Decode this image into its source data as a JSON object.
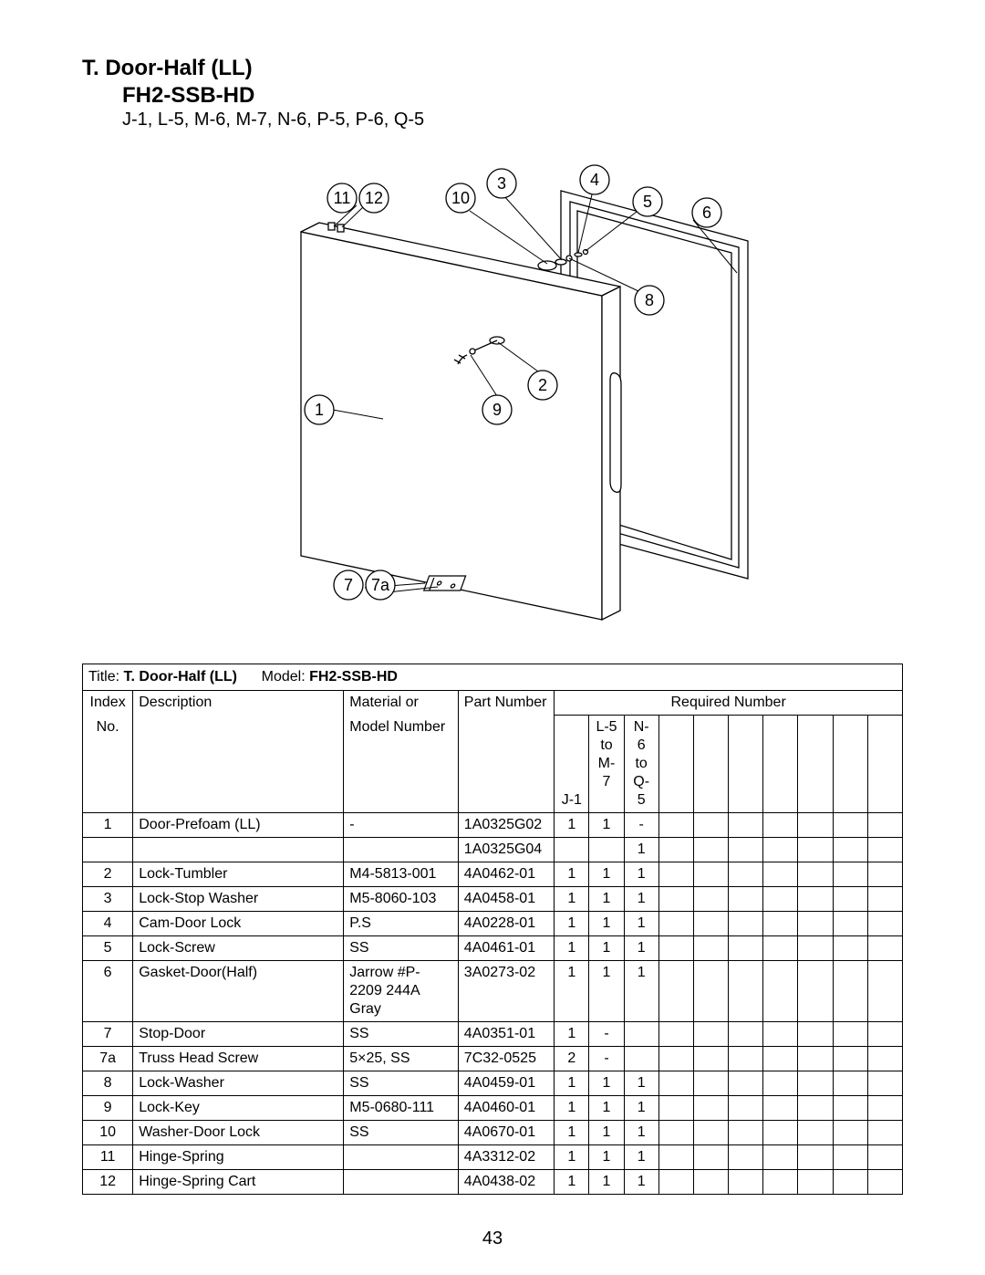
{
  "header": {
    "title_line1": "T. Door-Half (LL)",
    "title_line2": "FH2-SSB-HD",
    "subtitle": "J-1, L-5, M-6, M-7, N-6, P-5, P-6, Q-5"
  },
  "diagram": {
    "callouts": [
      "1",
      "2",
      "3",
      "4",
      "5",
      "6",
      "7",
      "7a",
      "8",
      "9",
      "10",
      "11",
      "12"
    ],
    "stroke": "#000000",
    "fill": "#ffffff",
    "callout_radius": 16
  },
  "table": {
    "title_prefix": "Title: ",
    "title_bold": "T. Door-Half (LL)",
    "model_prefix": "Model: ",
    "model_bold": "FH2-SSB-HD",
    "headers": {
      "index": "Index No.",
      "index_l1": "Index",
      "index_l2": "No.",
      "description": "Description",
      "material": "Material or Model Number",
      "material_l1": "Material or",
      "material_l2": "Model Number",
      "part": "Part Number",
      "required": "Required Number",
      "col_j1": "J-1",
      "col_l5_l1": "L-5",
      "col_l5_l2": "to",
      "col_l5_l3": "M-7",
      "col_n6_l1": "N-6",
      "col_n6_l2": "to",
      "col_n6_l3": "Q-5"
    },
    "rows": [
      {
        "idx": "1",
        "desc": "Door-Prefoam (LL)",
        "mat": "-",
        "part": "1A0325G02",
        "q": [
          "1",
          "1",
          "-"
        ]
      },
      {
        "idx": "",
        "desc": "",
        "mat": "",
        "part": "1A0325G04",
        "q": [
          "",
          "",
          "1"
        ]
      },
      {
        "idx": "2",
        "desc": "Lock-Tumbler",
        "mat": "M4-5813-001",
        "part": "4A0462-01",
        "q": [
          "1",
          "1",
          "1"
        ]
      },
      {
        "idx": "3",
        "desc": "Lock-Stop Washer",
        "mat": "M5-8060-103",
        "part": "4A0458-01",
        "q": [
          "1",
          "1",
          "1"
        ]
      },
      {
        "idx": "4",
        "desc": "Cam-Door Lock",
        "mat": "P.S",
        "part": "4A0228-01",
        "q": [
          "1",
          "1",
          "1"
        ]
      },
      {
        "idx": "5",
        "desc": "Lock-Screw",
        "mat": "SS",
        "part": "4A0461-01",
        "q": [
          "1",
          "1",
          "1"
        ]
      },
      {
        "idx": "6",
        "desc": "Gasket-Door(Half)",
        "mat": "Jarrow #P-2209 244A  Gray",
        "part": "3A0273-02",
        "q": [
          "1",
          "1",
          "1"
        ]
      },
      {
        "idx": "7",
        "desc": "Stop-Door",
        "mat": "SS",
        "part": "4A0351-01",
        "q": [
          "1",
          "-",
          ""
        ]
      },
      {
        "idx": "7a",
        "desc": "Truss Head Screw",
        "mat": "5×25, SS",
        "part": "7C32-0525",
        "q": [
          "2",
          "-",
          ""
        ]
      },
      {
        "idx": "8",
        "desc": "Lock-Washer",
        "mat": "SS",
        "part": "4A0459-01",
        "q": [
          "1",
          "1",
          "1"
        ]
      },
      {
        "idx": "9",
        "desc": "Lock-Key",
        "mat": "M5-0680-111",
        "part": "4A0460-01",
        "q": [
          "1",
          "1",
          "1"
        ]
      },
      {
        "idx": "10",
        "desc": "Washer-Door Lock",
        "mat": "SS",
        "part": "4A0670-01",
        "q": [
          "1",
          "1",
          "1"
        ]
      },
      {
        "idx": "11",
        "desc": "Hinge-Spring",
        "mat": "",
        "part": "4A3312-02",
        "q": [
          "1",
          "1",
          "1"
        ]
      },
      {
        "idx": "12",
        "desc": "Hinge-Spring Cart",
        "mat": "",
        "part": "4A0438-02",
        "q": [
          "1",
          "1",
          "1"
        ]
      }
    ],
    "empty_qty_cols": 7
  },
  "page_number": "43"
}
